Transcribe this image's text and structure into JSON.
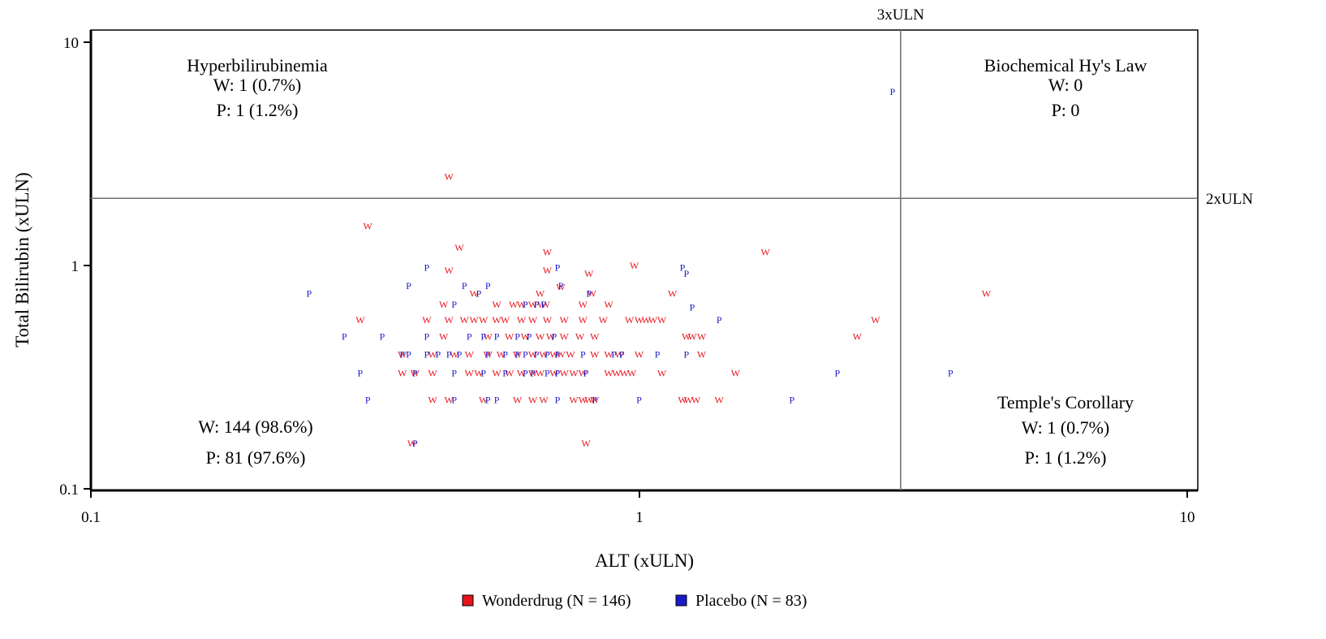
{
  "chart_data": {
    "type": "scatter",
    "xlabel": "ALT (xULN)",
    "ylabel": "Total Bilirubin (xULN)",
    "x_scale": "log",
    "y_scale": "log",
    "xlim": [
      0.1,
      10
    ],
    "ylim": [
      0.1,
      10
    ],
    "x_ticks": [
      "0.1",
      "1",
      "10"
    ],
    "y_ticks": [
      "0.1",
      "1",
      "10"
    ],
    "reference_lines": [
      {
        "axis": "x",
        "value": 3,
        "label": "3xULN"
      },
      {
        "axis": "y",
        "value": 2,
        "label": "2xULN"
      }
    ],
    "quadrants": {
      "top_left": [
        "Hyperbilirubinemia",
        "W: 1 (0.7%)",
        "P: 1 (1.2%)"
      ],
      "top_right": [
        "Biochemical Hy's Law",
        "W: 0",
        "P: 0"
      ],
      "bottom_left": [
        "W: 144 (98.6%)",
        "P: 81 (97.6%)"
      ],
      "bottom_right": [
        "Temple's Corollary",
        "W: 1 (0.7%)",
        "P: 1 (1.2%)"
      ]
    },
    "legend": [
      {
        "label": "Wonderdrug (N = 146)",
        "marker": "W",
        "color": "#e8141c"
      },
      {
        "label": "Placebo (N = 83)",
        "marker": "P",
        "color": "#1a1acc"
      }
    ],
    "series": [
      {
        "name": "Wonderdrug (N = 146)",
        "marker": "W",
        "color": "#e8141c",
        "points": [
          [
            0.45,
            2.5
          ],
          [
            0.32,
            1.5
          ],
          [
            0.47,
            1.2
          ],
          [
            0.68,
            1.15
          ],
          [
            1.7,
            1.15
          ],
          [
            0.45,
            0.95
          ],
          [
            0.68,
            0.95
          ],
          [
            0.81,
            0.92
          ],
          [
            0.98,
            1.0
          ],
          [
            0.72,
            0.8
          ],
          [
            0.5,
            0.75
          ],
          [
            0.66,
            0.75
          ],
          [
            0.82,
            0.75
          ],
          [
            1.15,
            0.75
          ],
          [
            4.3,
            0.75
          ],
          [
            0.44,
            0.67
          ],
          [
            0.55,
            0.67
          ],
          [
            0.59,
            0.67
          ],
          [
            0.61,
            0.67
          ],
          [
            0.64,
            0.67
          ],
          [
            0.665,
            0.67
          ],
          [
            0.675,
            0.67
          ],
          [
            0.79,
            0.67
          ],
          [
            0.88,
            0.67
          ],
          [
            0.31,
            0.57
          ],
          [
            0.41,
            0.57
          ],
          [
            0.45,
            0.57
          ],
          [
            0.48,
            0.57
          ],
          [
            0.5,
            0.57
          ],
          [
            0.52,
            0.57
          ],
          [
            0.55,
            0.57
          ],
          [
            0.57,
            0.57
          ],
          [
            0.61,
            0.57
          ],
          [
            0.64,
            0.57
          ],
          [
            0.68,
            0.57
          ],
          [
            0.73,
            0.57
          ],
          [
            0.79,
            0.57
          ],
          [
            0.86,
            0.57
          ],
          [
            0.96,
            0.57
          ],
          [
            1.0,
            0.57
          ],
          [
            1.03,
            0.57
          ],
          [
            1.06,
            0.57
          ],
          [
            1.1,
            0.57
          ],
          [
            2.7,
            0.57
          ],
          [
            0.44,
            0.48
          ],
          [
            0.53,
            0.48
          ],
          [
            0.58,
            0.48
          ],
          [
            0.62,
            0.48
          ],
          [
            0.66,
            0.48
          ],
          [
            0.69,
            0.48
          ],
          [
            0.73,
            0.48
          ],
          [
            0.78,
            0.48
          ],
          [
            0.83,
            0.48
          ],
          [
            1.22,
            0.48
          ],
          [
            1.25,
            0.48
          ],
          [
            1.3,
            0.48
          ],
          [
            2.5,
            0.48
          ],
          [
            0.37,
            0.4
          ],
          [
            0.42,
            0.4
          ],
          [
            0.46,
            0.4
          ],
          [
            0.49,
            0.4
          ],
          [
            0.53,
            0.4
          ],
          [
            0.56,
            0.4
          ],
          [
            0.6,
            0.4
          ],
          [
            0.64,
            0.4
          ],
          [
            0.67,
            0.4
          ],
          [
            0.7,
            0.4
          ],
          [
            0.72,
            0.4
          ],
          [
            0.75,
            0.4
          ],
          [
            0.83,
            0.4
          ],
          [
            0.88,
            0.4
          ],
          [
            0.92,
            0.4
          ],
          [
            1.0,
            0.4
          ],
          [
            1.3,
            0.4
          ],
          [
            0.37,
            0.33
          ],
          [
            0.39,
            0.33
          ],
          [
            0.42,
            0.33
          ],
          [
            0.49,
            0.33
          ],
          [
            0.51,
            0.33
          ],
          [
            0.55,
            0.33
          ],
          [
            0.58,
            0.33
          ],
          [
            0.61,
            0.33
          ],
          [
            0.64,
            0.33
          ],
          [
            0.66,
            0.33
          ],
          [
            0.7,
            0.33
          ],
          [
            0.73,
            0.33
          ],
          [
            0.76,
            0.33
          ],
          [
            0.79,
            0.33
          ],
          [
            0.88,
            0.33
          ],
          [
            0.91,
            0.33
          ],
          [
            0.94,
            0.33
          ],
          [
            0.97,
            0.33
          ],
          [
            1.1,
            0.33
          ],
          [
            1.5,
            0.33
          ],
          [
            0.42,
            0.25
          ],
          [
            0.45,
            0.25
          ],
          [
            0.52,
            0.25
          ],
          [
            0.6,
            0.25
          ],
          [
            0.64,
            0.25
          ],
          [
            0.67,
            0.25
          ],
          [
            0.76,
            0.25
          ],
          [
            0.79,
            0.25
          ],
          [
            0.81,
            0.25
          ],
          [
            0.83,
            0.25
          ],
          [
            1.2,
            0.25
          ],
          [
            1.23,
            0.25
          ],
          [
            1.27,
            0.25
          ],
          [
            1.4,
            0.25
          ],
          [
            0.385,
            0.16
          ],
          [
            0.8,
            0.16
          ]
        ]
      },
      {
        "name": "Placebo (N = 83)",
        "marker": "P",
        "color": "#1a1acc",
        "points": [
          [
            2.9,
            6.0
          ],
          [
            0.41,
            0.98
          ],
          [
            0.71,
            0.98
          ],
          [
            1.2,
            0.98
          ],
          [
            1.22,
            0.92
          ],
          [
            0.38,
            0.81
          ],
          [
            0.48,
            0.81
          ],
          [
            0.53,
            0.81
          ],
          [
            0.72,
            0.81
          ],
          [
            0.25,
            0.75
          ],
          [
            0.51,
            0.75
          ],
          [
            0.81,
            0.75
          ],
          [
            1.25,
            0.65
          ],
          [
            1.4,
            0.57
          ],
          [
            0.46,
            0.67
          ],
          [
            0.62,
            0.67
          ],
          [
            0.65,
            0.67
          ],
          [
            0.67,
            0.67
          ],
          [
            0.29,
            0.48
          ],
          [
            0.34,
            0.48
          ],
          [
            0.41,
            0.48
          ],
          [
            0.49,
            0.48
          ],
          [
            0.52,
            0.48
          ],
          [
            0.55,
            0.48
          ],
          [
            0.6,
            0.48
          ],
          [
            0.63,
            0.48
          ],
          [
            0.7,
            0.48
          ],
          [
            0.37,
            0.4
          ],
          [
            0.38,
            0.4
          ],
          [
            0.41,
            0.4
          ],
          [
            0.43,
            0.4
          ],
          [
            0.45,
            0.4
          ],
          [
            0.47,
            0.4
          ],
          [
            0.53,
            0.4
          ],
          [
            0.57,
            0.4
          ],
          [
            0.6,
            0.4
          ],
          [
            0.62,
            0.4
          ],
          [
            0.65,
            0.4
          ],
          [
            0.68,
            0.4
          ],
          [
            0.71,
            0.4
          ],
          [
            0.79,
            0.4
          ],
          [
            0.9,
            0.4
          ],
          [
            0.93,
            0.4
          ],
          [
            1.08,
            0.4
          ],
          [
            1.22,
            0.4
          ],
          [
            0.31,
            0.33
          ],
          [
            0.39,
            0.33
          ],
          [
            0.46,
            0.33
          ],
          [
            0.52,
            0.33
          ],
          [
            0.57,
            0.33
          ],
          [
            0.62,
            0.33
          ],
          [
            0.64,
            0.33
          ],
          [
            0.68,
            0.33
          ],
          [
            0.71,
            0.33
          ],
          [
            0.8,
            0.33
          ],
          [
            2.3,
            0.33
          ],
          [
            3.7,
            0.33
          ],
          [
            0.32,
            0.25
          ],
          [
            0.46,
            0.25
          ],
          [
            0.53,
            0.25
          ],
          [
            0.55,
            0.25
          ],
          [
            0.71,
            0.25
          ],
          [
            0.83,
            0.25
          ],
          [
            1.0,
            0.25
          ],
          [
            1.9,
            0.25
          ],
          [
            0.39,
            0.16
          ]
        ]
      }
    ]
  }
}
